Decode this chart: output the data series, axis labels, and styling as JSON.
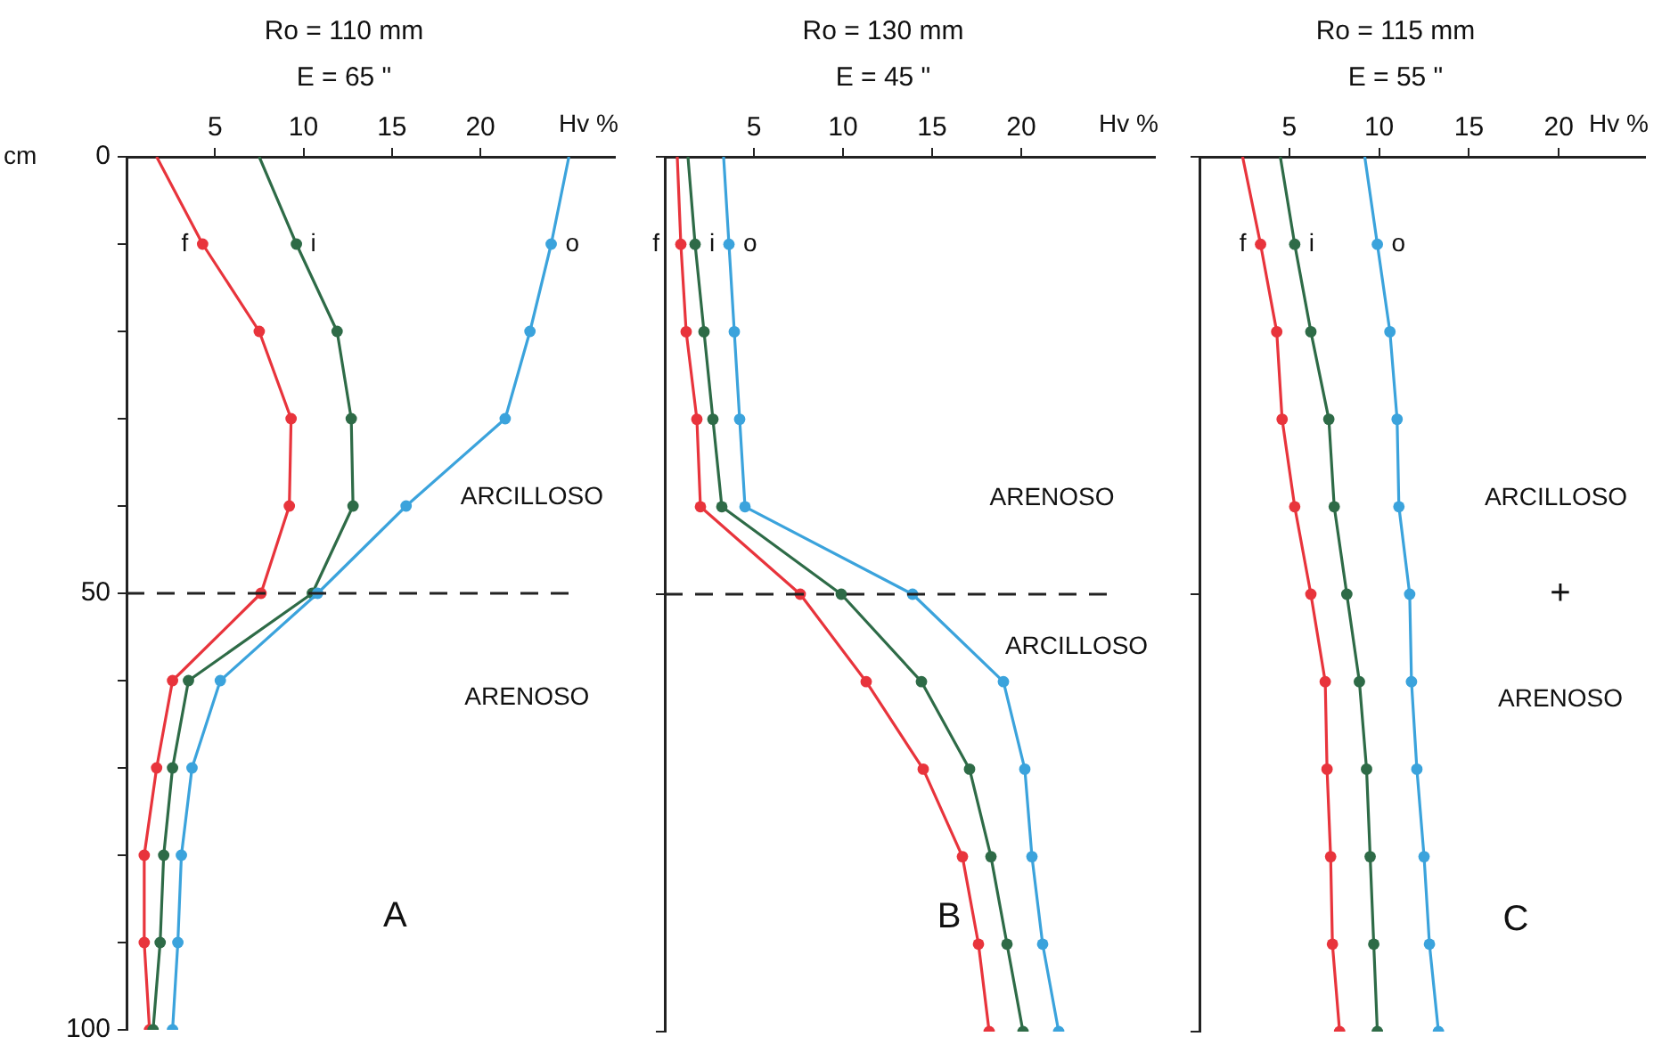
{
  "chart_data": [
    {
      "type": "line",
      "title": "Ro = 110 mm",
      "subtitle": "E = 65 \"",
      "xlabel": "Hv %",
      "ylabel": "cm",
      "xlim": [
        0,
        27.6
      ],
      "xticks": [
        5,
        10,
        15,
        20
      ],
      "ylim": [
        100,
        0
      ],
      "yticks": [
        0,
        {
          "value": 10,
          "label": null
        },
        {
          "value": 20,
          "label": null
        },
        {
          "value": 30,
          "label": null
        },
        {
          "value": 40,
          "label": null
        },
        50,
        {
          "value": 60,
          "label": null
        },
        {
          "value": 70,
          "label": null
        },
        {
          "value": 80,
          "label": null
        },
        {
          "value": 90,
          "label": null
        },
        100
      ],
      "marker": "circle",
      "line_style": "solid",
      "grid": false,
      "ref_lines": [
        {
          "axis": "y",
          "value": 50,
          "line_style": "dashed",
          "color": "#222222"
        }
      ],
      "annotations": [
        "ARCILLOSO",
        "ARENOSO",
        "A"
      ],
      "series": [
        {
          "name": "f",
          "color": "#e8343c",
          "x": [
            1.7,
            4.3,
            7.5,
            9.3,
            9.2,
            7.6,
            2.6,
            1.7,
            1.0,
            1.0,
            1.3
          ],
          "values": [
            0,
            10,
            20,
            30,
            40,
            50,
            60,
            70,
            80,
            90,
            100
          ]
        },
        {
          "name": "i",
          "color": "#2e6b47",
          "x": [
            7.5,
            9.6,
            11.9,
            12.7,
            12.8,
            10.5,
            3.5,
            2.6,
            2.1,
            1.9,
            1.5
          ],
          "values": [
            0,
            10,
            20,
            30,
            40,
            50,
            60,
            70,
            80,
            90,
            100
          ]
        },
        {
          "name": "o",
          "color": "#3ba3dc",
          "x": [
            25.0,
            24.0,
            22.8,
            21.4,
            15.8,
            10.8,
            5.3,
            3.7,
            3.1,
            2.9,
            2.6
          ],
          "values": [
            0,
            10,
            20,
            30,
            40,
            50,
            60,
            70,
            80,
            90,
            100
          ]
        }
      ]
    },
    {
      "type": "line",
      "title": "Ro = 130 mm",
      "subtitle": "E = 45 \"",
      "xlabel": "Hv %",
      "xlim": [
        0,
        27.5
      ],
      "xticks": [
        5,
        10,
        15,
        20
      ],
      "ylim": [
        100,
        0
      ],
      "yticks": [
        0,
        50,
        100
      ],
      "tick_labels": "x",
      "marker": "circle",
      "line_style": "solid",
      "grid": false,
      "ref_lines": [
        {
          "axis": "y",
          "value": 50,
          "line_style": "dashed",
          "color": "#222222"
        }
      ],
      "annotations": [
        "ARENOSO",
        "ARCILLOSO",
        "B"
      ],
      "series": [
        {
          "name": "f",
          "color": "#e8343c",
          "x": [
            0.7,
            0.9,
            1.2,
            1.8,
            2.0,
            7.6,
            11.3,
            14.5,
            16.7,
            17.6,
            18.2
          ],
          "values": [
            0,
            10,
            20,
            30,
            40,
            50,
            60,
            70,
            80,
            90,
            100
          ]
        },
        {
          "name": "i",
          "color": "#2e6b47",
          "x": [
            1.3,
            1.7,
            2.2,
            2.7,
            3.2,
            9.9,
            14.4,
            17.1,
            18.3,
            19.2,
            20.1
          ],
          "values": [
            0,
            10,
            20,
            30,
            40,
            50,
            60,
            70,
            80,
            90,
            100
          ]
        },
        {
          "name": "o",
          "color": "#3ba3dc",
          "x": [
            3.3,
            3.6,
            3.9,
            4.2,
            4.5,
            13.9,
            19.0,
            20.2,
            20.6,
            21.2,
            22.1
          ],
          "values": [
            0,
            10,
            20,
            30,
            40,
            50,
            60,
            70,
            80,
            90,
            100
          ]
        }
      ]
    },
    {
      "type": "line",
      "title": "Ro = 115 mm",
      "subtitle": "E = 55 \"",
      "xlabel": "Hv %",
      "xlim": [
        0,
        24.8
      ],
      "xticks": [
        5,
        10,
        15,
        20
      ],
      "ylim": [
        100,
        0
      ],
      "yticks": [
        0,
        50,
        100
      ],
      "tick_labels": "x",
      "marker": "circle",
      "line_style": "solid",
      "grid": false,
      "annotations": [
        "ARCILLOSO",
        "+",
        "ARENOSO",
        "C"
      ],
      "series": [
        {
          "name": "f",
          "color": "#e8343c",
          "x": [
            2.4,
            3.4,
            4.3,
            4.6,
            5.3,
            6.2,
            7.0,
            7.1,
            7.3,
            7.4,
            7.8
          ],
          "values": [
            0,
            10,
            20,
            30,
            40,
            50,
            60,
            70,
            80,
            90,
            100
          ]
        },
        {
          "name": "i",
          "color": "#2e6b47",
          "x": [
            4.5,
            5.3,
            6.2,
            7.2,
            7.5,
            8.2,
            8.9,
            9.3,
            9.5,
            9.7,
            9.9
          ],
          "values": [
            0,
            10,
            20,
            30,
            40,
            50,
            60,
            70,
            80,
            90,
            100
          ]
        },
        {
          "name": "o",
          "color": "#3ba3dc",
          "x": [
            9.2,
            9.9,
            10.6,
            11.0,
            11.1,
            11.7,
            11.8,
            12.1,
            12.5,
            12.8,
            13.3
          ],
          "values": [
            0,
            10,
            20,
            30,
            40,
            50,
            60,
            70,
            80,
            90,
            100
          ]
        }
      ]
    }
  ]
}
